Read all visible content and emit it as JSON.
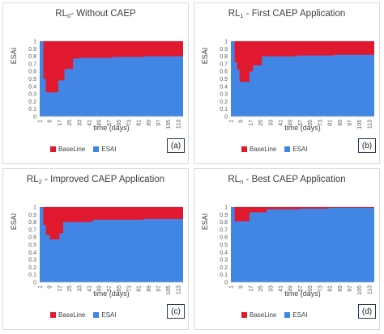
{
  "colors": {
    "baseline": "#e0192f",
    "esai": "#4286e5",
    "grid": "#d9d9d9",
    "axis_text": "#595959"
  },
  "panels": [
    {
      "title": "RL",
      "subscript": "0",
      "title_rest": "- Without CAEP",
      "tag": "(a)",
      "ylabel": "ESAI",
      "xlabel": "time (days)",
      "legend": [
        "BaseLine",
        "ESAI"
      ]
    },
    {
      "title": "RL",
      "subscript": "1",
      "title_rest": " - First CAEP Application",
      "tag": "(b)",
      "ylabel": "ESAI",
      "xlabel": "time (days)",
      "legend": [
        "BaseLine",
        "ESAI"
      ]
    },
    {
      "title": "RL",
      "subscript": "2",
      "title_rest": " - Improved CAEP Application",
      "tag": "(c)",
      "ylabel": "ESAI",
      "xlabel": "time (days)",
      "legend": [
        "BaseLine",
        "ESAI"
      ]
    },
    {
      "title": "RL",
      "subscript": "n",
      "title_rest": " - Best CAEP Application",
      "tag": "(d)",
      "ylabel": "ESAI",
      "xlabel": "time (days)",
      "legend": [
        "BaseLine",
        "ESAI"
      ]
    }
  ],
  "chart_data": [
    {
      "type": "area",
      "title": "RL0- Without CAEP",
      "xlabel": "time (days)",
      "ylabel": "ESAI",
      "xlim": [
        1,
        117
      ],
      "ylim": [
        0,
        1
      ],
      "x_ticks": [
        1,
        9,
        17,
        25,
        33,
        41,
        49,
        57,
        65,
        73,
        81,
        89,
        97,
        105,
        113
      ],
      "y_ticks": [
        0,
        0.1,
        0.2,
        0.3,
        0.4,
        0.5,
        0.6,
        0.7,
        0.8,
        0.9,
        1
      ],
      "series": [
        {
          "name": "BaseLine",
          "points": [
            [
              1,
              1
            ],
            [
              117,
              1
            ]
          ]
        },
        {
          "name": "ESAI",
          "points": [
            [
              1,
              1
            ],
            [
              4,
              1
            ],
            [
              4,
              0.5
            ],
            [
              6,
              0.5
            ],
            [
              6,
              0.32
            ],
            [
              16,
              0.32
            ],
            [
              16,
              0.48
            ],
            [
              21,
              0.48
            ],
            [
              21,
              0.63
            ],
            [
              28,
              0.63
            ],
            [
              28,
              0.77
            ],
            [
              33,
              0.77
            ],
            [
              33,
              0.78
            ],
            [
              60,
              0.78
            ],
            [
              60,
              0.79
            ],
            [
              85,
              0.79
            ],
            [
              85,
              0.8
            ],
            [
              117,
              0.8
            ]
          ]
        }
      ]
    },
    {
      "type": "area",
      "title": "RL1 - First CAEP Application",
      "xlabel": "time (days)",
      "ylabel": "ESAI",
      "xlim": [
        1,
        117
      ],
      "ylim": [
        0,
        1
      ],
      "x_ticks": [
        1,
        9,
        17,
        25,
        33,
        41,
        49,
        57,
        65,
        73,
        81,
        89,
        97,
        105,
        113
      ],
      "y_ticks": [
        0,
        0.1,
        0.2,
        0.3,
        0.4,
        0.5,
        0.6,
        0.7,
        0.8,
        0.9,
        1
      ],
      "series": [
        {
          "name": "BaseLine",
          "points": [
            [
              1,
              1
            ],
            [
              117,
              1
            ]
          ]
        },
        {
          "name": "ESAI",
          "points": [
            [
              1,
              1
            ],
            [
              4,
              1
            ],
            [
              4,
              0.72
            ],
            [
              6,
              0.72
            ],
            [
              6,
              0.62
            ],
            [
              8,
              0.62
            ],
            [
              8,
              0.46
            ],
            [
              16,
              0.46
            ],
            [
              16,
              0.6
            ],
            [
              19,
              0.6
            ],
            [
              19,
              0.68
            ],
            [
              26,
              0.68
            ],
            [
              26,
              0.8
            ],
            [
              55,
              0.8
            ],
            [
              55,
              0.81
            ],
            [
              85,
              0.81
            ],
            [
              85,
              0.82
            ],
            [
              117,
              0.82
            ]
          ]
        }
      ]
    },
    {
      "type": "area",
      "title": "RL2 - Improved CAEP Application",
      "xlabel": "time (days)",
      "ylabel": "ESAI",
      "xlim": [
        1,
        117
      ],
      "ylim": [
        0,
        1
      ],
      "x_ticks": [
        1,
        9,
        17,
        25,
        33,
        41,
        49,
        57,
        65,
        73,
        81,
        89,
        97,
        105,
        113
      ],
      "y_ticks": [
        0,
        0.1,
        0.2,
        0.3,
        0.4,
        0.5,
        0.6,
        0.7,
        0.8,
        0.9,
        1
      ],
      "series": [
        {
          "name": "BaseLine",
          "points": [
            [
              1,
              1
            ],
            [
              117,
              1
            ]
          ]
        },
        {
          "name": "ESAI",
          "points": [
            [
              1,
              1
            ],
            [
              4,
              1
            ],
            [
              4,
              0.76
            ],
            [
              6,
              0.76
            ],
            [
              6,
              0.63
            ],
            [
              9,
              0.63
            ],
            [
              9,
              0.57
            ],
            [
              17,
              0.57
            ],
            [
              17,
              0.65
            ],
            [
              20,
              0.65
            ],
            [
              20,
              0.8
            ],
            [
              44,
              0.8
            ],
            [
              44,
              0.83
            ],
            [
              85,
              0.83
            ],
            [
              85,
              0.84
            ],
            [
              117,
              0.84
            ]
          ]
        }
      ]
    },
    {
      "type": "area",
      "title": "RLn - Best CAEP Application",
      "xlabel": "time (days)",
      "ylabel": "ESAI",
      "xlim": [
        1,
        117
      ],
      "ylim": [
        0,
        1
      ],
      "x_ticks": [
        1,
        9,
        17,
        25,
        33,
        41,
        49,
        57,
        65,
        73,
        81,
        89,
        97,
        105,
        113
      ],
      "y_ticks": [
        0,
        0.1,
        0.2,
        0.3,
        0.4,
        0.5,
        0.6,
        0.7,
        0.8,
        0.9,
        1
      ],
      "series": [
        {
          "name": "BaseLine",
          "points": [
            [
              1,
              1
            ],
            [
              117,
              1
            ]
          ]
        },
        {
          "name": "ESAI",
          "points": [
            [
              1,
              1
            ],
            [
              4,
              1
            ],
            [
              4,
              0.81
            ],
            [
              16,
              0.81
            ],
            [
              16,
              0.93
            ],
            [
              30,
              0.93
            ],
            [
              30,
              0.97
            ],
            [
              56,
              0.97
            ],
            [
              56,
              0.98
            ],
            [
              80,
              0.98
            ],
            [
              80,
              0.99
            ],
            [
              117,
              0.99
            ]
          ]
        }
      ]
    }
  ]
}
